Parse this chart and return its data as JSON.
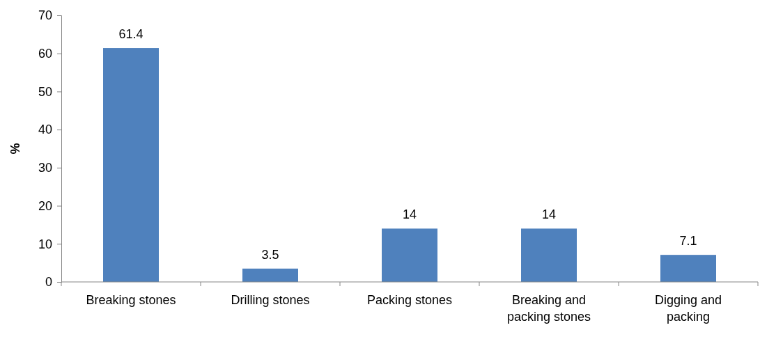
{
  "chart_data": {
    "type": "bar",
    "ylabel": "%",
    "categories": [
      "Breaking stones",
      "Drilling stones",
      "Packing stones",
      "Breaking and packing stones",
      "Digging and packing"
    ],
    "values": [
      61.4,
      3.5,
      14,
      14,
      7.1
    ],
    "color": "#4f81bd",
    "data_labels": true,
    "ylim": [
      0,
      70
    ],
    "yticks": [
      0,
      10,
      20,
      30,
      40,
      50,
      60,
      70
    ],
    "grid": false
  }
}
